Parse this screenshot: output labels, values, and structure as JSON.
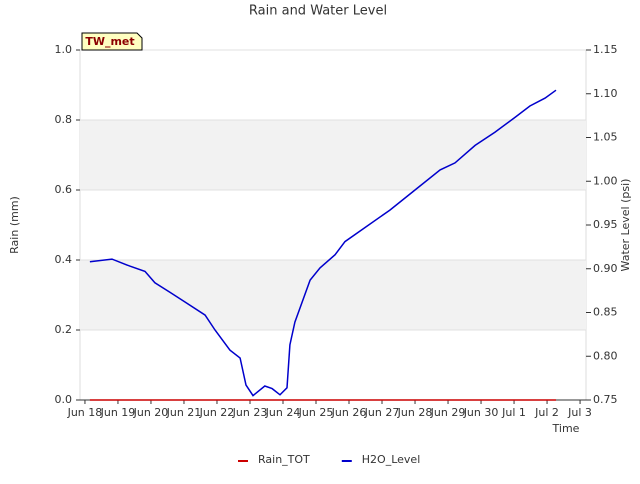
{
  "chart_data": {
    "type": "line",
    "title": "Rain and Water Level",
    "annotation": "TW_met",
    "xlabel": "Time",
    "ylabel": "Rain (mm)",
    "y2label": "Water Level (psi)",
    "xlim": [
      -0.15,
      15.18
    ],
    "xticks": [
      {
        "value": 0,
        "label": "Jun 18"
      },
      {
        "value": 1,
        "label": "Jun 19"
      },
      {
        "value": 2,
        "label": "Jun 20"
      },
      {
        "value": 3,
        "label": "Jun 21"
      },
      {
        "value": 4,
        "label": "Jun 22"
      },
      {
        "value": 5,
        "label": "Jun 23"
      },
      {
        "value": 6,
        "label": "Jun 24"
      },
      {
        "value": 7,
        "label": "Jun 25"
      },
      {
        "value": 8,
        "label": "Jun 26"
      },
      {
        "value": 9,
        "label": "Jun 27"
      },
      {
        "value": 10,
        "label": "Jun 28"
      },
      {
        "value": 11,
        "label": "Jun 29"
      },
      {
        "value": 12,
        "label": "Jun 30"
      },
      {
        "value": 13,
        "label": "Jul 1"
      },
      {
        "value": 14,
        "label": "Jul 2"
      },
      {
        "value": 15,
        "label": "Jul 3"
      }
    ],
    "ylim": [
      0,
      1
    ],
    "yticks": [
      {
        "value": 0,
        "label": "0.0"
      },
      0.2,
      0.4,
      0.6,
      0.8,
      {
        "value": 1,
        "label": "1.0"
      }
    ],
    "y2lim": [
      0.75,
      1.15
    ],
    "y2ticks": [
      0.75,
      {
        "value": 0.8,
        "label": "0.80"
      },
      0.85,
      {
        "value": 0.9,
        "label": "0.90"
      },
      0.95,
      {
        "value": 1,
        "label": "1.00"
      },
      1.05,
      {
        "value": 1.1,
        "label": "1.10"
      },
      1.15
    ],
    "grid": true,
    "series": [
      {
        "name": "Rain_TOT",
        "color": "#cc0000",
        "x": [
          0.15,
          14.27
        ],
        "values": [
          0,
          0
        ]
      },
      {
        "name": "H2O_Level",
        "color": "#0000cc",
        "axis": "y2",
        "x": [
          0.15,
          0.82,
          1.36,
          1.82,
          2.12,
          2.58,
          3.03,
          3.64,
          3.94,
          4.39,
          4.7,
          4.88,
          5.09,
          5.45,
          5.67,
          5.91,
          6.12,
          6.21,
          6.36,
          6.82,
          7.12,
          7.58,
          7.88,
          8.48,
          9.24,
          10.0,
          10.76,
          11.21,
          11.82,
          12.42,
          13.03,
          13.48,
          13.94,
          14.27
        ],
        "values": [
          0.908,
          0.911,
          0.903,
          0.897,
          0.884,
          0.873,
          0.862,
          0.847,
          0.83,
          0.807,
          0.798,
          0.767,
          0.755,
          0.766,
          0.763,
          0.756,
          0.764,
          0.813,
          0.839,
          0.887,
          0.901,
          0.916,
          0.931,
          0.947,
          0.967,
          0.99,
          1.013,
          1.021,
          1.041,
          1.056,
          1.073,
          1.086,
          1.095,
          1.104
        ]
      }
    ]
  }
}
